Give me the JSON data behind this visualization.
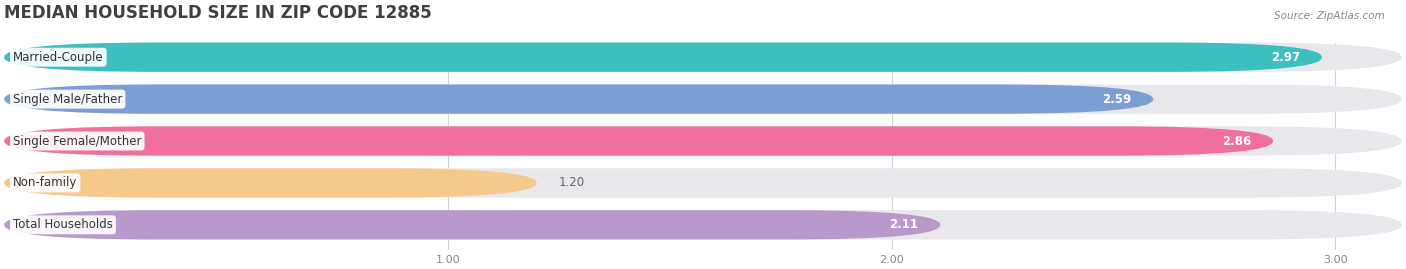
{
  "title": "MEDIAN HOUSEHOLD SIZE IN ZIP CODE 12885",
  "source": "Source: ZipAtlas.com",
  "categories": [
    "Married-Couple",
    "Single Male/Father",
    "Single Female/Mother",
    "Non-family",
    "Total Households"
  ],
  "values": [
    2.97,
    2.59,
    2.86,
    1.2,
    2.11
  ],
  "bar_colors": [
    "#3bbfbf",
    "#7b9fd4",
    "#f06fa0",
    "#f5c98a",
    "#b899cc"
  ],
  "bar_bg_color": "#e8e8ec",
  "xlim_data": [
    0.0,
    3.15
  ],
  "x_axis_start": 0.0,
  "xticks": [
    1.0,
    2.0,
    3.0
  ],
  "label_fontsize": 8.5,
  "value_fontsize": 8.5,
  "title_fontsize": 12,
  "background_color": "#ffffff"
}
